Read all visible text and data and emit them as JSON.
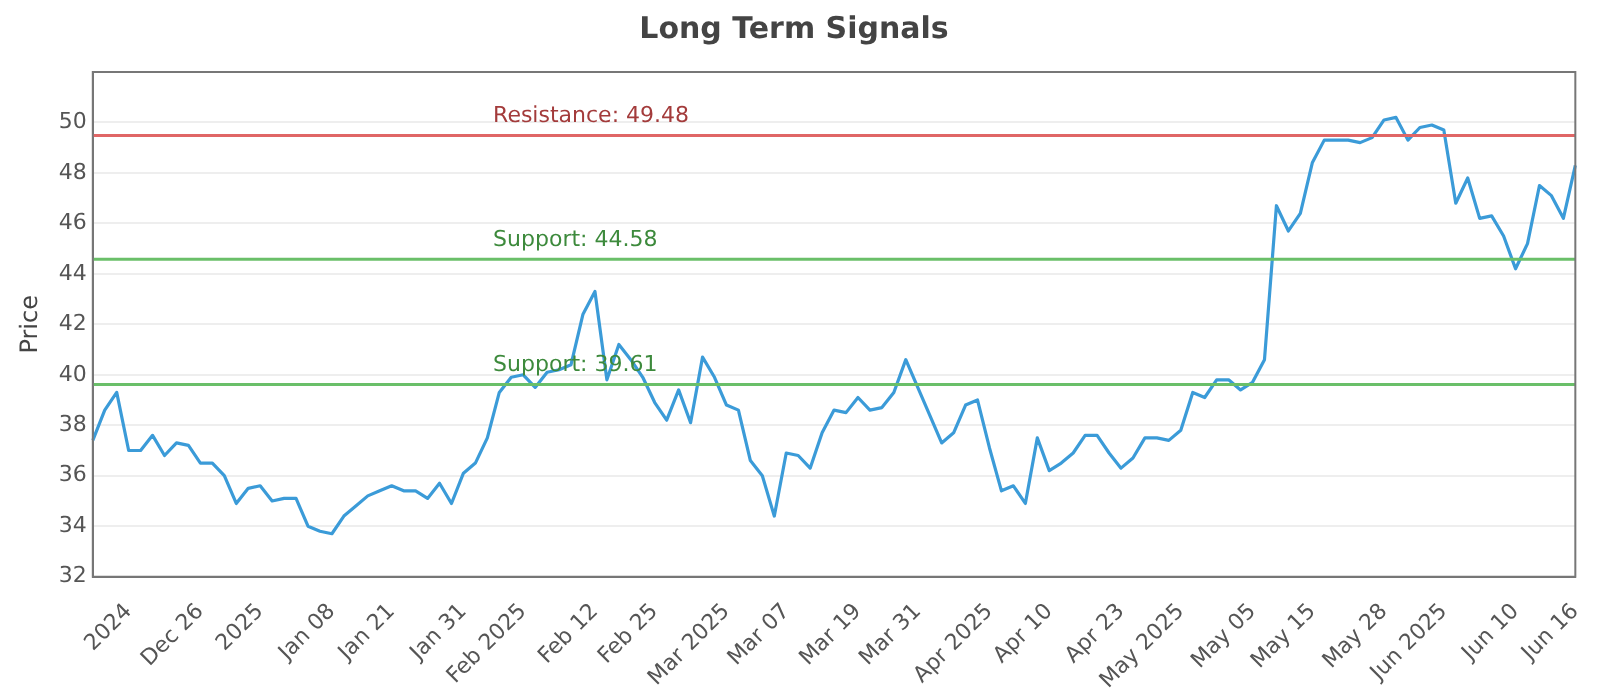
{
  "chart_data": {
    "type": "line",
    "title": "Long Term Signals",
    "ylabel": "Price",
    "categories": [
      null,
      null,
      null,
      "2024",
      null,
      null,
      null,
      null,
      null,
      "Dec 26",
      null,
      null,
      null,
      null,
      "2025",
      null,
      null,
      null,
      null,
      null,
      "Jan 08",
      null,
      null,
      null,
      null,
      "Jan 21",
      null,
      null,
      null,
      null,
      null,
      "Jan 31",
      null,
      null,
      null,
      null,
      "Feb 2025",
      null,
      null,
      null,
      null,
      null,
      "Feb 12",
      null,
      null,
      null,
      null,
      "Feb 25",
      null,
      null,
      null,
      null,
      null,
      "Mar 2025",
      null,
      null,
      null,
      null,
      "Mar 07",
      null,
      null,
      null,
      null,
      null,
      "Mar 19",
      null,
      null,
      null,
      null,
      "Mar 31",
      null,
      null,
      null,
      null,
      null,
      "Apr 2025",
      null,
      null,
      null,
      null,
      "Apr 10",
      null,
      null,
      null,
      null,
      null,
      "Apr 23",
      null,
      null,
      null,
      null,
      "May 2025",
      null,
      null,
      null,
      null,
      null,
      "May 05",
      null,
      null,
      null,
      null,
      "May 15",
      null,
      null,
      null,
      null,
      null,
      "May 28",
      null,
      null,
      null,
      null,
      "Jun 2025",
      null,
      null,
      null,
      null,
      null,
      "Jun 10",
      null,
      null,
      null,
      null,
      "Jun 16"
    ],
    "series": [
      {
        "color": "#3b9bd8",
        "values": [
          37.4,
          38.6,
          39.3,
          37.0,
          37.0,
          37.6,
          36.8,
          37.3,
          37.2,
          36.5,
          36.5,
          36.0,
          34.9,
          35.5,
          35.6,
          35.0,
          35.1,
          35.1,
          34.0,
          33.8,
          33.7,
          34.4,
          34.8,
          35.2,
          35.4,
          35.6,
          35.4,
          35.4,
          35.1,
          35.7,
          34.9,
          36.1,
          36.5,
          37.5,
          39.3,
          39.9,
          40.0,
          39.5,
          40.1,
          40.2,
          40.4,
          42.4,
          43.3,
          39.8,
          41.2,
          40.6,
          39.9,
          38.9,
          38.2,
          39.4,
          38.1,
          40.7,
          39.9,
          38.8,
          38.6,
          36.6,
          36.0,
          34.4,
          36.9,
          36.8,
          36.3,
          37.7,
          38.6,
          38.5,
          39.1,
          38.6,
          38.7,
          39.3,
          40.6,
          39.5,
          38.4,
          37.3,
          37.7,
          38.8,
          39.0,
          37.1,
          35.4,
          35.6,
          34.9,
          37.5,
          36.2,
          36.5,
          36.9,
          37.6,
          37.6,
          36.9,
          36.3,
          36.7,
          37.5,
          37.5,
          37.4,
          37.8,
          39.3,
          39.1,
          39.8,
          39.8,
          39.4,
          39.7,
          40.6,
          46.7,
          45.7,
          46.4,
          48.4,
          49.3,
          49.3,
          49.3,
          49.2,
          49.4,
          50.1,
          50.2,
          49.3,
          49.8,
          49.9,
          49.7,
          46.8,
          47.8,
          46.2,
          46.3,
          45.5,
          44.2,
          45.2,
          47.5,
          47.1,
          46.2,
          48.3
        ]
      }
    ],
    "ylim": [
      32,
      52
    ],
    "yticks": [
      32,
      34,
      36,
      38,
      40,
      42,
      44,
      46,
      48,
      50
    ],
    "grid": "y",
    "legend": false,
    "marker": "none",
    "line_style": "solid",
    "ref_lines": [
      {
        "axis": "y",
        "value": 49.48,
        "label": "Resistance: 49.48",
        "color": "#e06666"
      },
      {
        "axis": "y",
        "value": 44.58,
        "label": "Support: 44.58",
        "color": "#6abf69"
      },
      {
        "axis": "y",
        "value": 39.61,
        "label": "Support: 39.61",
        "color": "#6abf69"
      }
    ]
  }
}
